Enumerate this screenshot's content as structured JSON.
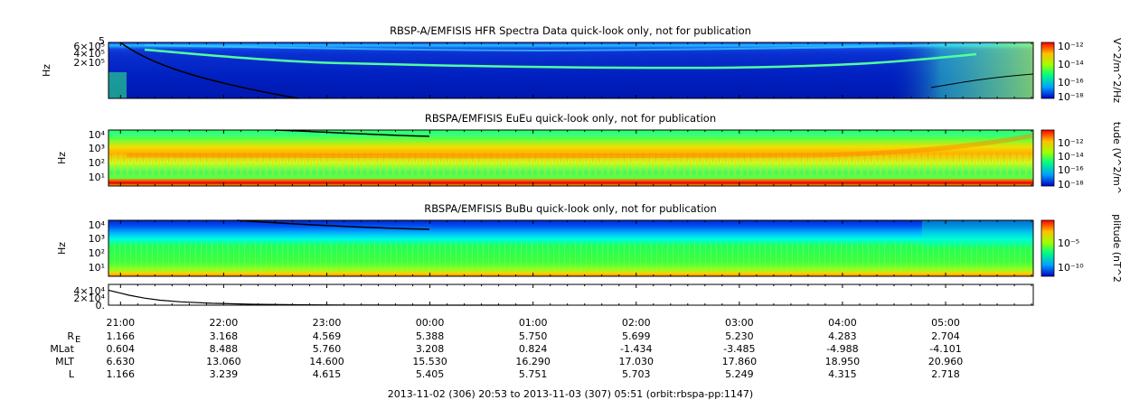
{
  "chart_data": [
    {
      "type": "heatmap",
      "title": "RBSP-A/EMFISIS  HFR Spectra Data quick-look only, not for publication",
      "ylabel": "Hz",
      "ytick_labels": [
        "5",
        "6×10⁵",
        "4×10⁵",
        "2×10⁵"
      ],
      "colorbar_label": "V^2/m^2/Hz",
      "colorbar_ticks": [
        "10⁻¹²",
        "10⁻¹⁴",
        "10⁻¹⁶",
        "10⁻¹⁸"
      ]
    },
    {
      "type": "heatmap",
      "title": "RBSPA/EMFISIS  EuEu quick-look only, not for publication",
      "ylabel": "Hz",
      "ytick_labels": [
        "10⁴",
        "10³",
        "10²",
        "10¹"
      ],
      "colorbar_label": "tude (V^2/m^",
      "colorbar_ticks": [
        "10⁻¹²",
        "10⁻¹⁴",
        "10⁻¹⁶",
        "10⁻¹⁸"
      ]
    },
    {
      "type": "heatmap",
      "title": "RBSPA/EMFISIS  BuBu quick-look only, not for publication",
      "ylabel": "Hz",
      "ytick_labels": [
        "10⁴",
        "10³",
        "10²",
        "10¹"
      ],
      "colorbar_label": "plitude (nT^2",
      "colorbar_ticks": [
        "10⁻⁵",
        "10⁻¹⁰"
      ]
    },
    {
      "type": "line",
      "ytick_labels": [
        "4×10⁴",
        "2×10⁴",
        "0."
      ],
      "x_hours": [
        0,
        0.1,
        0.2,
        0.35,
        0.5,
        0.7,
        1.0,
        1.4,
        1.9,
        2.5,
        3.1
      ],
      "y": [
        36000,
        30000,
        24000,
        17000,
        12000,
        8000,
        4500,
        2200,
        900,
        300,
        0
      ]
    }
  ],
  "x_axis": {
    "tick_labels": [
      "21:00",
      "22:00",
      "23:00",
      "00:00",
      "01:00",
      "02:00",
      "03:00",
      "04:00",
      "05:00"
    ]
  },
  "ephemeris": {
    "rows": [
      {
        "label": "R",
        "sub": "E",
        "values": [
          "1.166",
          "3.168",
          "4.569",
          "5.388",
          "5.750",
          "5.699",
          "5.230",
          "4.283",
          "2.704"
        ]
      },
      {
        "label": "MLat",
        "sub": "",
        "values": [
          "0.604",
          "8.488",
          "5.760",
          "3.208",
          "0.824",
          "-1.434",
          "-3.485",
          "-4.988",
          "-4.101"
        ]
      },
      {
        "label": "MLT",
        "sub": "",
        "values": [
          "6.630",
          "13.060",
          "14.600",
          "15.530",
          "16.290",
          "17.030",
          "17.860",
          "18.950",
          "20.960"
        ]
      },
      {
        "label": "L",
        "sub": "",
        "values": [
          "1.166",
          "3.239",
          "4.615",
          "5.405",
          "5.751",
          "5.703",
          "5.249",
          "4.315",
          "2.718"
        ]
      }
    ]
  },
  "footer": "2013-11-02 (306) 20:53 to 2013-11-03 (307) 05:51 (orbit:rbspa-pp:1147)"
}
